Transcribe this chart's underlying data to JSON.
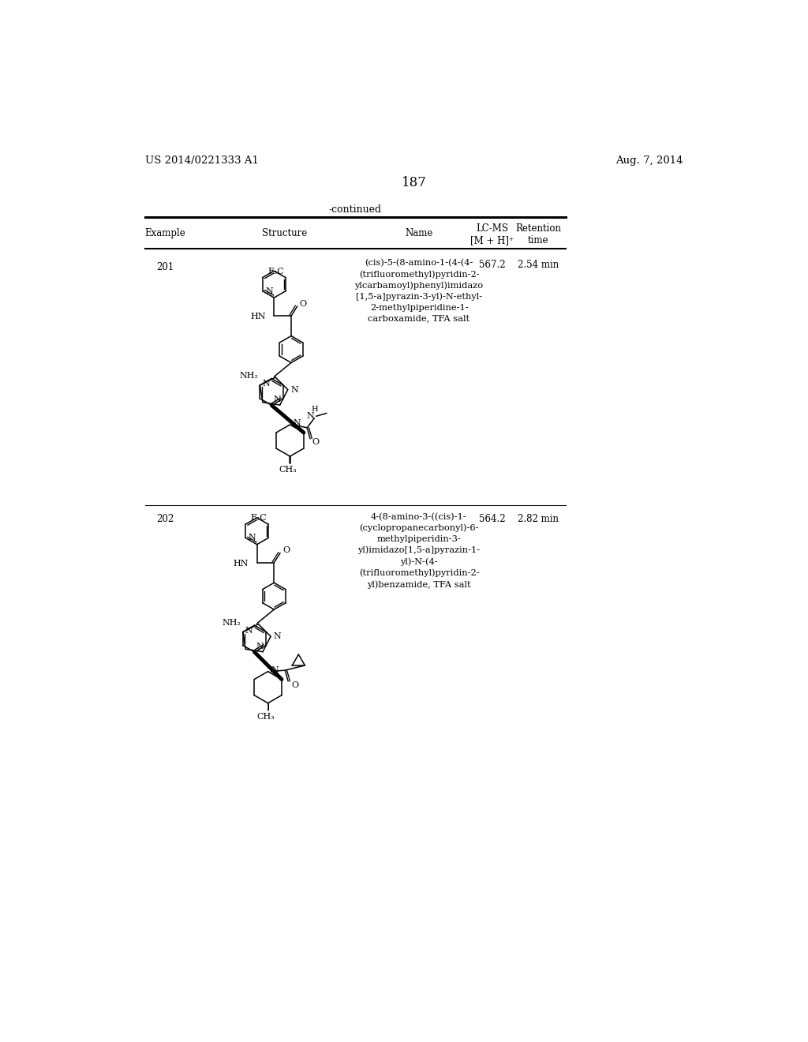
{
  "page_num": "187",
  "patent_left": "US 2014/0221333 A1",
  "patent_right": "Aug. 7, 2014",
  "continued": "-continued",
  "rows": [
    {
      "example": "201",
      "name": "(cis)-5-(8-amino-1-(4-(4-\n(trifluoromethyl)pyridin-2-\nylcarbamoyl)phenyl)imidazo\n[1,5-a]pyrazin-3-yl)-N-ethyl-\n2-methylpiperidine-1-\ncarboxamide, TFA salt",
      "lcms": "567.2",
      "retention": "2.54 min"
    },
    {
      "example": "202",
      "name": "4-(8-amino-3-((cis)-1-\n(cyclopropanecarbonyl)-6-\nmethylpiperidin-3-\nyl)imidazo[1,5-a]pyrazin-1-\nyl)-N-(4-\n(trifluoromethyl)pyridin-2-\nyl)benzamide, TFA salt",
      "lcms": "564.2",
      "retention": "2.82 min"
    }
  ],
  "bg_color": "#ffffff",
  "text_color": "#000000"
}
